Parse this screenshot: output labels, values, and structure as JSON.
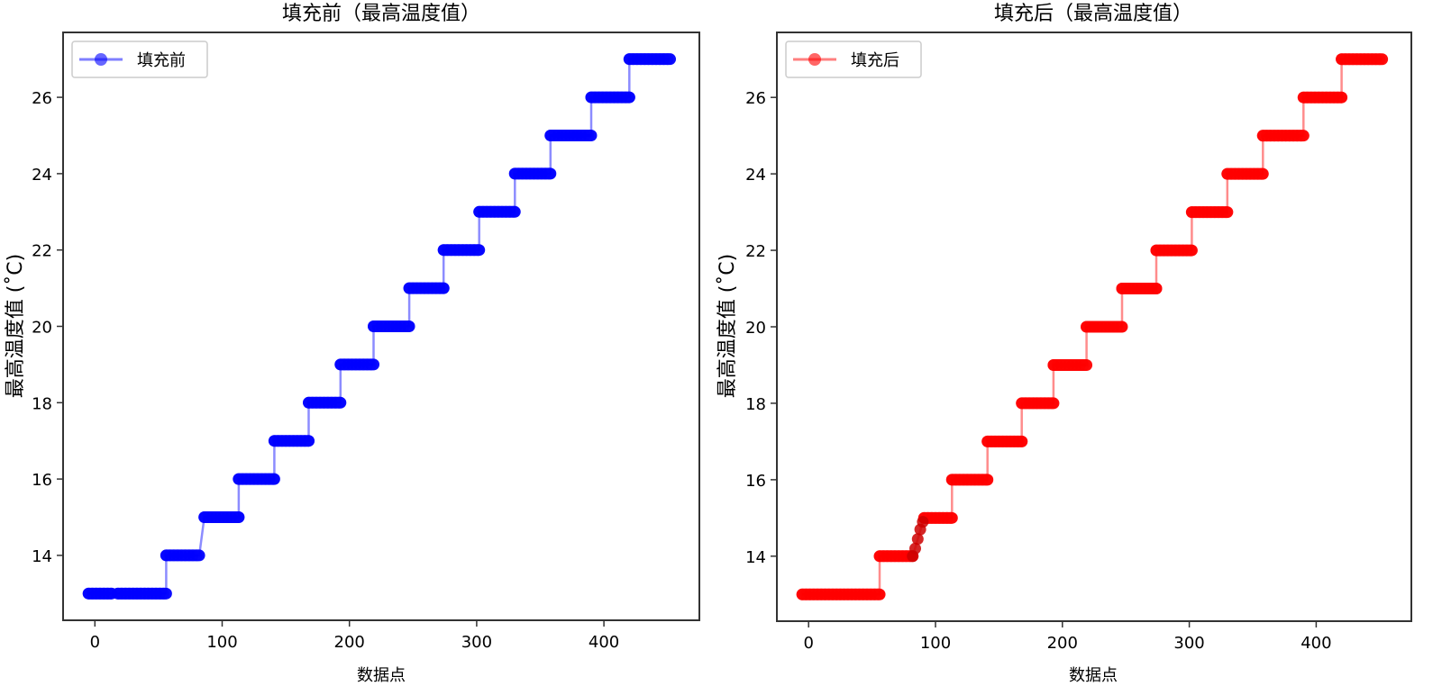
{
  "chart_data": [
    {
      "type": "line",
      "title": "填充前（最高温度值）",
      "xlabel": "数据点",
      "ylabel": "最高温度值 (˚C)",
      "xlim": [
        -25,
        475
      ],
      "ylim": [
        12.3,
        27.7
      ],
      "xticks": [
        0,
        100,
        200,
        300,
        400
      ],
      "yticks": [
        14,
        16,
        18,
        20,
        22,
        24,
        26
      ],
      "legend_position": "top-left",
      "grid": false,
      "series": [
        {
          "name": "填充前",
          "color": "#0000ff",
          "segments": [
            {
              "x0": -5,
              "x1": 13,
              "y": 13
            },
            {
              "x0": 18,
              "x1": 56,
              "y": 13
            },
            {
              "x0": 56,
              "x1": 82,
              "y": 14
            },
            {
              "x0": 86,
              "x1": 113,
              "y": 15
            },
            {
              "x0": 113,
              "x1": 141,
              "y": 16
            },
            {
              "x0": 141,
              "x1": 168,
              "y": 17
            },
            {
              "x0": 168,
              "x1": 193,
              "y": 18
            },
            {
              "x0": 193,
              "x1": 219,
              "y": 19
            },
            {
              "x0": 219,
              "x1": 247,
              "y": 20
            },
            {
              "x0": 247,
              "x1": 274,
              "y": 21
            },
            {
              "x0": 274,
              "x1": 302,
              "y": 22
            },
            {
              "x0": 302,
              "x1": 330,
              "y": 23
            },
            {
              "x0": 330,
              "x1": 358,
              "y": 24
            },
            {
              "x0": 358,
              "x1": 390,
              "y": 25
            },
            {
              "x0": 390,
              "x1": 420,
              "y": 26
            },
            {
              "x0": 420,
              "x1": 452,
              "y": 27
            }
          ]
        }
      ]
    },
    {
      "type": "line",
      "title": "填充后（最高温度值）",
      "xlabel": "数据点",
      "ylabel": "最高温度值 (˚C)",
      "xlim": [
        -25,
        475
      ],
      "ylim": [
        12.3,
        27.7
      ],
      "xticks": [
        0,
        100,
        200,
        300,
        400
      ],
      "yticks": [
        14,
        16,
        18,
        20,
        22,
        24,
        26
      ],
      "legend_position": "top-left",
      "grid": false,
      "series": [
        {
          "name": "填充后",
          "color": "#ff0000",
          "segments": [
            {
              "x0": -5,
              "x1": 56,
              "y": 13
            },
            {
              "x0": 56,
              "x1": 82,
              "y": 14
            },
            {
              "x0": 91,
              "x1": 113,
              "y": 15
            },
            {
              "x0": 113,
              "x1": 141,
              "y": 16
            },
            {
              "x0": 141,
              "x1": 168,
              "y": 17
            },
            {
              "x0": 168,
              "x1": 193,
              "y": 18
            },
            {
              "x0": 193,
              "x1": 219,
              "y": 19
            },
            {
              "x0": 219,
              "x1": 247,
              "y": 20
            },
            {
              "x0": 247,
              "x1": 274,
              "y": 21
            },
            {
              "x0": 274,
              "x1": 302,
              "y": 22
            },
            {
              "x0": 302,
              "x1": 330,
              "y": 23
            },
            {
              "x0": 330,
              "x1": 358,
              "y": 24
            },
            {
              "x0": 358,
              "x1": 390,
              "y": 25
            },
            {
              "x0": 390,
              "x1": 420,
              "y": 26
            },
            {
              "x0": 420,
              "x1": 452,
              "y": 27
            }
          ],
          "fill_points": [
            [
              82,
              14.0
            ],
            [
              84,
              14.2
            ],
            [
              86,
              14.45
            ],
            [
              88,
              14.7
            ],
            [
              90,
              14.9
            ]
          ]
        }
      ]
    }
  ]
}
